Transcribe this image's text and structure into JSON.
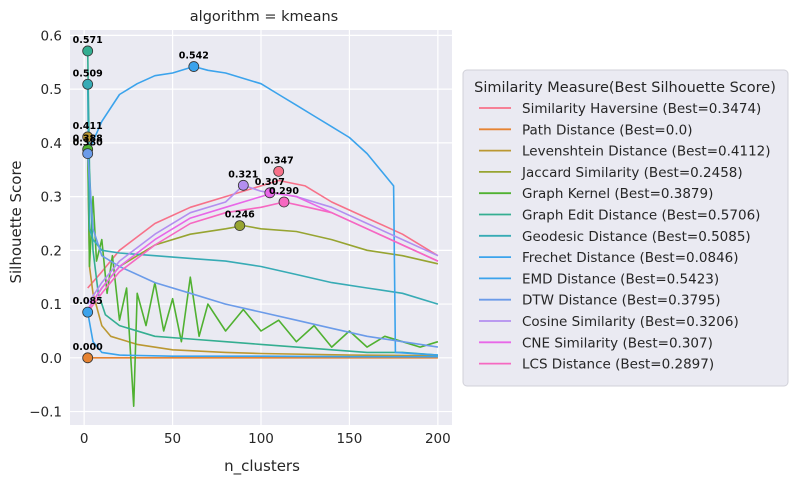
{
  "chart_data": {
    "type": "line",
    "title": "algorithm = kmeans",
    "xlabel": "n_clusters",
    "ylabel": "Silhouette Score",
    "xlim": [
      -8,
      208
    ],
    "ylim": [
      -0.125,
      0.61
    ],
    "xticks": [
      0,
      50,
      100,
      150,
      200
    ],
    "xtick_labels": [
      "0",
      "50",
      "100",
      "150",
      "200"
    ],
    "yticks": [
      -0.1,
      0.0,
      0.1,
      0.2,
      0.3,
      0.4,
      0.5,
      0.6
    ],
    "ytick_labels": [
      "−0.1",
      "0.0",
      "0.1",
      "0.2",
      "0.3",
      "0.4",
      "0.5",
      "0.6"
    ],
    "grid": true,
    "legend_placement": "outside-right",
    "legend_title": "Similarity Measure(Best Silhouette Score)",
    "series": [
      {
        "name": "Similarity Haversine (Best=0.3474)",
        "color": "#f77189",
        "points": [
          [
            2,
            0.13
          ],
          [
            10,
            0.16
          ],
          [
            20,
            0.2
          ],
          [
            40,
            0.25
          ],
          [
            60,
            0.28
          ],
          [
            80,
            0.3
          ],
          [
            100,
            0.32
          ],
          [
            110,
            0.33
          ],
          [
            125,
            0.32
          ],
          [
            140,
            0.29
          ],
          [
            160,
            0.26
          ],
          [
            180,
            0.23
          ],
          [
            200,
            0.19
          ]
        ],
        "best": {
          "x": 110,
          "y": 0.347,
          "label": "0.347"
        }
      },
      {
        "name": "Path Distance (Best=0.0)",
        "color": "#e68332",
        "points": [
          [
            2,
            0.0
          ],
          [
            50,
            0.0
          ],
          [
            100,
            0.0
          ],
          [
            150,
            0.0
          ],
          [
            200,
            0.0
          ]
        ],
        "best": {
          "x": 2,
          "y": 0.0,
          "label": "0.000"
        }
      },
      {
        "name": "Levenshtein Distance (Best=0.4112)",
        "color": "#bb9832",
        "points": [
          [
            2,
            0.41
          ],
          [
            3,
            0.17
          ],
          [
            5,
            0.12
          ],
          [
            10,
            0.06
          ],
          [
            15,
            0.04
          ],
          [
            20,
            0.035
          ],
          [
            30,
            0.025
          ],
          [
            50,
            0.015
          ],
          [
            80,
            0.01
          ],
          [
            100,
            0.008
          ],
          [
            150,
            0.005
          ],
          [
            200,
            0.004
          ]
        ],
        "best": {
          "x": 2,
          "y": 0.411,
          "label": "0.411"
        }
      },
      {
        "name": "Jaccard Similarity (Best=0.2458)",
        "color": "#97a431",
        "points": [
          [
            2,
            0.09
          ],
          [
            10,
            0.13
          ],
          [
            20,
            0.17
          ],
          [
            40,
            0.21
          ],
          [
            60,
            0.23
          ],
          [
            80,
            0.24
          ],
          [
            90,
            0.246
          ],
          [
            100,
            0.24
          ],
          [
            120,
            0.235
          ],
          [
            140,
            0.22
          ],
          [
            160,
            0.2
          ],
          [
            180,
            0.19
          ],
          [
            200,
            0.175
          ]
        ],
        "best": {
          "x": 88,
          "y": 0.246,
          "label": "0.246"
        }
      },
      {
        "name": "Graph Kernel (Best=0.3879)",
        "color": "#50b131",
        "points": [
          [
            2,
            0.388
          ],
          [
            3,
            0.17
          ],
          [
            5,
            0.3
          ],
          [
            7,
            0.18
          ],
          [
            10,
            0.22
          ],
          [
            13,
            0.12
          ],
          [
            16,
            0.19
          ],
          [
            20,
            0.07
          ],
          [
            24,
            0.13
          ],
          [
            28,
            -0.09
          ],
          [
            30,
            0.12
          ],
          [
            35,
            0.06
          ],
          [
            40,
            0.14
          ],
          [
            45,
            0.05
          ],
          [
            50,
            0.11
          ],
          [
            55,
            0.03
          ],
          [
            60,
            0.15
          ],
          [
            65,
            0.04
          ],
          [
            70,
            0.1
          ],
          [
            80,
            0.05
          ],
          [
            90,
            0.09
          ],
          [
            100,
            0.05
          ],
          [
            110,
            0.07
          ],
          [
            120,
            0.03
          ],
          [
            130,
            0.06
          ],
          [
            140,
            0.02
          ],
          [
            150,
            0.05
          ],
          [
            160,
            0.02
          ],
          [
            170,
            0.04
          ],
          [
            180,
            0.03
          ],
          [
            190,
            0.02
          ],
          [
            200,
            0.03
          ]
        ],
        "best": {
          "x": 2,
          "y": 0.388,
          "label": "0.388"
        }
      },
      {
        "name": "Graph Edit Distance (Best=0.5706)",
        "color": "#34ae91",
        "points": [
          [
            2,
            0.571
          ],
          [
            3,
            0.35
          ],
          [
            5,
            0.2
          ],
          [
            8,
            0.12
          ],
          [
            12,
            0.08
          ],
          [
            20,
            0.06
          ],
          [
            40,
            0.04
          ],
          [
            60,
            0.035
          ],
          [
            80,
            0.03
          ],
          [
            100,
            0.025
          ],
          [
            120,
            0.02
          ],
          [
            140,
            0.015
          ],
          [
            160,
            0.01
          ],
          [
            180,
            0.01
          ],
          [
            200,
            0.005
          ]
        ],
        "best": {
          "x": 2,
          "y": 0.571,
          "label": "0.571"
        }
      },
      {
        "name": "Geodesic Distance (Best=0.5085)",
        "color": "#37abb5",
        "points": [
          [
            2,
            0.509
          ],
          [
            3,
            0.24
          ],
          [
            5,
            0.22
          ],
          [
            10,
            0.2
          ],
          [
            20,
            0.195
          ],
          [
            40,
            0.19
          ],
          [
            60,
            0.185
          ],
          [
            80,
            0.18
          ],
          [
            100,
            0.17
          ],
          [
            120,
            0.155
          ],
          [
            140,
            0.14
          ],
          [
            160,
            0.13
          ],
          [
            180,
            0.12
          ],
          [
            200,
            0.1
          ]
        ],
        "best": {
          "x": 2,
          "y": 0.509,
          "label": "0.509"
        }
      },
      {
        "name": "Frechet Distance (Best=0.0846)",
        "color": "#3ba3ec",
        "points": [
          [
            2,
            0.085
          ],
          [
            5,
            0.03
          ],
          [
            10,
            0.01
          ],
          [
            20,
            0.005
          ],
          [
            50,
            0.003
          ],
          [
            100,
            0.003
          ],
          [
            150,
            0.002
          ],
          [
            200,
            0.002
          ]
        ],
        "best": {
          "x": 2,
          "y": 0.085,
          "label": "0.085"
        }
      },
      {
        "name": "EMD Distance (Best=0.5423)",
        "color": "#3ba3ec",
        "points": [
          [
            2,
            0.38
          ],
          [
            10,
            0.44
          ],
          [
            20,
            0.49
          ],
          [
            30,
            0.51
          ],
          [
            40,
            0.525
          ],
          [
            50,
            0.53
          ],
          [
            62,
            0.542
          ],
          [
            70,
            0.535
          ],
          [
            80,
            0.53
          ],
          [
            90,
            0.52
          ],
          [
            100,
            0.51
          ],
          [
            110,
            0.49
          ],
          [
            120,
            0.47
          ],
          [
            130,
            0.45
          ],
          [
            140,
            0.43
          ],
          [
            150,
            0.41
          ],
          [
            160,
            0.38
          ],
          [
            170,
            0.34
          ],
          [
            175,
            0.32
          ],
          [
            176,
            0.01
          ],
          [
            200,
            0.005
          ]
        ],
        "best": {
          "x": 62,
          "y": 0.542,
          "label": "0.542"
        }
      },
      {
        "name": "DTW Distance (Best=0.3795)",
        "color": "#6b9be9",
        "points": [
          [
            2,
            0.38
          ],
          [
            5,
            0.24
          ],
          [
            10,
            0.19
          ],
          [
            20,
            0.17
          ],
          [
            40,
            0.14
          ],
          [
            60,
            0.12
          ],
          [
            80,
            0.1
          ],
          [
            100,
            0.085
          ],
          [
            120,
            0.07
          ],
          [
            140,
            0.055
          ],
          [
            160,
            0.04
          ],
          [
            180,
            0.03
          ],
          [
            200,
            0.02
          ]
        ],
        "best": {
          "x": 2,
          "y": 0.38,
          "label": "0.380"
        }
      },
      {
        "name": "Cosine Similarity (Best=0.3206)",
        "color": "#b38ef0",
        "points": [
          [
            2,
            0.1
          ],
          [
            10,
            0.14
          ],
          [
            20,
            0.18
          ],
          [
            40,
            0.23
          ],
          [
            60,
            0.27
          ],
          [
            80,
            0.29
          ],
          [
            90,
            0.321
          ],
          [
            100,
            0.31
          ],
          [
            120,
            0.3
          ],
          [
            140,
            0.28
          ],
          [
            160,
            0.25
          ],
          [
            180,
            0.22
          ],
          [
            200,
            0.19
          ]
        ],
        "best": {
          "x": 90,
          "y": 0.321,
          "label": "0.321"
        }
      },
      {
        "name": "CNE Similarity (Best=0.307)",
        "color": "#e867e8",
        "points": [
          [
            2,
            0.09
          ],
          [
            10,
            0.13
          ],
          [
            20,
            0.17
          ],
          [
            40,
            0.22
          ],
          [
            60,
            0.26
          ],
          [
            80,
            0.28
          ],
          [
            100,
            0.3
          ],
          [
            107,
            0.307
          ],
          [
            120,
            0.3
          ],
          [
            140,
            0.27
          ],
          [
            160,
            0.24
          ],
          [
            180,
            0.21
          ],
          [
            200,
            0.18
          ]
        ],
        "best": {
          "x": 105,
          "y": 0.307,
          "label": "0.307"
        }
      },
      {
        "name": "LCS Distance (Best=0.2897)",
        "color": "#f668c1",
        "points": [
          [
            2,
            0.085
          ],
          [
            10,
            0.12
          ],
          [
            20,
            0.16
          ],
          [
            40,
            0.21
          ],
          [
            60,
            0.25
          ],
          [
            80,
            0.27
          ],
          [
            100,
            0.28
          ],
          [
            113,
            0.29
          ],
          [
            120,
            0.285
          ],
          [
            140,
            0.27
          ],
          [
            160,
            0.24
          ],
          [
            180,
            0.21
          ],
          [
            200,
            0.18
          ]
        ],
        "best": {
          "x": 113,
          "y": 0.29,
          "label": "0.290"
        }
      }
    ]
  }
}
